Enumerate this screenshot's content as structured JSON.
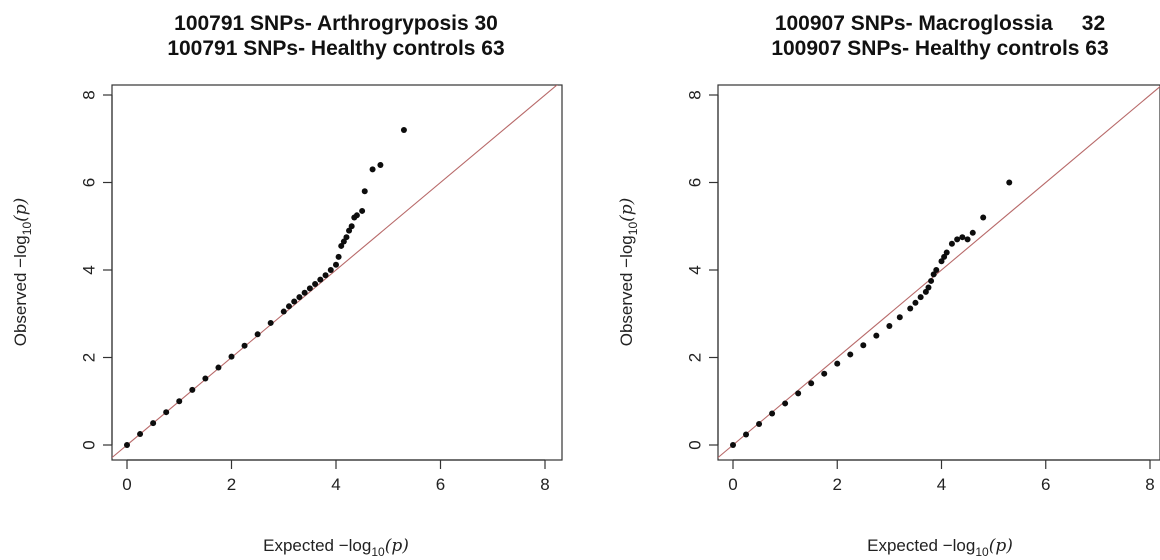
{
  "chart_data": [
    {
      "type": "scatter",
      "title": "100791 SNPs- Arthrogryposis 30",
      "subtitle": "100791 SNPs- Healthy controls 63",
      "xlabel": "Expected  −log",
      "ylabel": "Observed  −log",
      "label_sub": "10",
      "label_arg": "(p)",
      "xlim": [
        0,
        8
      ],
      "ylim": [
        0,
        8
      ],
      "xticks": [
        "0",
        "2",
        "4",
        "6",
        "8"
      ],
      "yticks": [
        "0",
        "2",
        "4",
        "6",
        "8"
      ],
      "reference_line": "y = x",
      "reference_color": "#b86a6a",
      "point_color": "#0d0d0d",
      "grid": false,
      "x": [
        0.0,
        0.25,
        0.5,
        0.75,
        1.0,
        1.25,
        1.5,
        1.75,
        2.0,
        2.25,
        2.5,
        2.75,
        3.0,
        3.1,
        3.2,
        3.3,
        3.4,
        3.5,
        3.6,
        3.7,
        3.8,
        3.9,
        4.0,
        4.05,
        4.1,
        4.15,
        4.2,
        4.25,
        4.3,
        4.35,
        4.4,
        4.5,
        4.55,
        4.7,
        4.85,
        5.3
      ],
      "y": [
        0.0,
        0.25,
        0.5,
        0.75,
        1.0,
        1.26,
        1.52,
        1.77,
        2.02,
        2.27,
        2.53,
        2.79,
        3.05,
        3.17,
        3.28,
        3.38,
        3.48,
        3.58,
        3.68,
        3.78,
        3.88,
        4.0,
        4.12,
        4.3,
        4.55,
        4.65,
        4.75,
        4.9,
        5.0,
        5.2,
        5.25,
        5.35,
        5.8,
        6.3,
        6.4,
        7.2
      ]
    },
    {
      "type": "scatter",
      "title": "100907 SNPs- Macroglossia     32",
      "subtitle": "100907 SNPs- Healthy controls 63",
      "xlabel": "Expected  −log",
      "ylabel": "Observed  −log",
      "label_sub": "10",
      "label_arg": "(p)",
      "xlim": [
        0,
        8
      ],
      "ylim": [
        0,
        8
      ],
      "xticks": [
        "0",
        "2",
        "4",
        "6",
        "8"
      ],
      "yticks": [
        "0",
        "2",
        "4",
        "6",
        "8"
      ],
      "reference_line": "y = x",
      "reference_color": "#b86a6a",
      "point_color": "#0d0d0d",
      "grid": false,
      "x": [
        0.0,
        0.25,
        0.5,
        0.75,
        1.0,
        1.25,
        1.5,
        1.75,
        2.0,
        2.25,
        2.5,
        2.75,
        3.0,
        3.2,
        3.4,
        3.5,
        3.6,
        3.7,
        3.75,
        3.8,
        3.85,
        3.9,
        4.0,
        4.05,
        4.1,
        4.2,
        4.3,
        4.4,
        4.5,
        4.6,
        4.8,
        5.3
      ],
      "y": [
        0.0,
        0.24,
        0.48,
        0.72,
        0.95,
        1.18,
        1.41,
        1.63,
        1.86,
        2.07,
        2.28,
        2.5,
        2.72,
        2.92,
        3.12,
        3.25,
        3.38,
        3.5,
        3.6,
        3.75,
        3.9,
        4.0,
        4.2,
        4.3,
        4.4,
        4.6,
        4.7,
        4.75,
        4.7,
        4.85,
        5.2,
        6.0
      ]
    }
  ]
}
